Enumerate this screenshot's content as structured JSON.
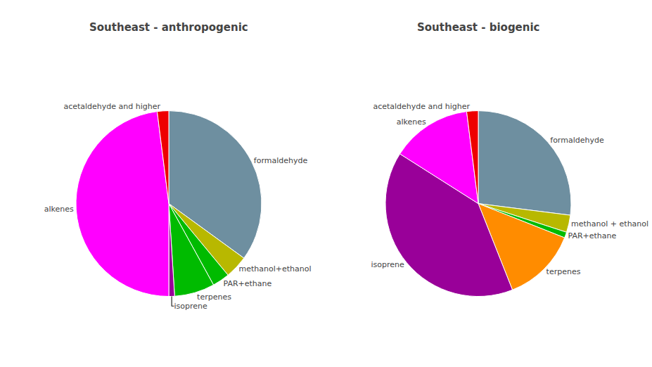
{
  "chart_data": [
    {
      "type": "pie",
      "title": "Southeast - anthropogenic",
      "categories": [
        "formaldehyde",
        "methanol+ethanol",
        "PAR+ethane",
        "terpenes",
        "isoprene",
        "alkenes",
        "acetaldehyde and higher"
      ],
      "values": [
        35,
        4,
        3,
        7,
        1,
        48,
        2
      ],
      "colors": [
        "#6e8fa0",
        "#b8b800",
        "#00bb00",
        "#00bb00",
        "#990099",
        "#ff00ff",
        "#ee0000"
      ]
    },
    {
      "type": "pie",
      "title": "Southeast - biogenic",
      "categories": [
        "formaldehyde",
        "methanol + ethanol",
        "PAR+ethane",
        "terpenes",
        "isoprene",
        "alkenes",
        "acetaldehyde and higher"
      ],
      "values": [
        27,
        3,
        1,
        13,
        40,
        14,
        2
      ],
      "colors": [
        "#6e8fa0",
        "#b8b800",
        "#00bb00",
        "#ff8c00",
        "#990099",
        "#ff00ff",
        "#ee0000"
      ]
    }
  ]
}
